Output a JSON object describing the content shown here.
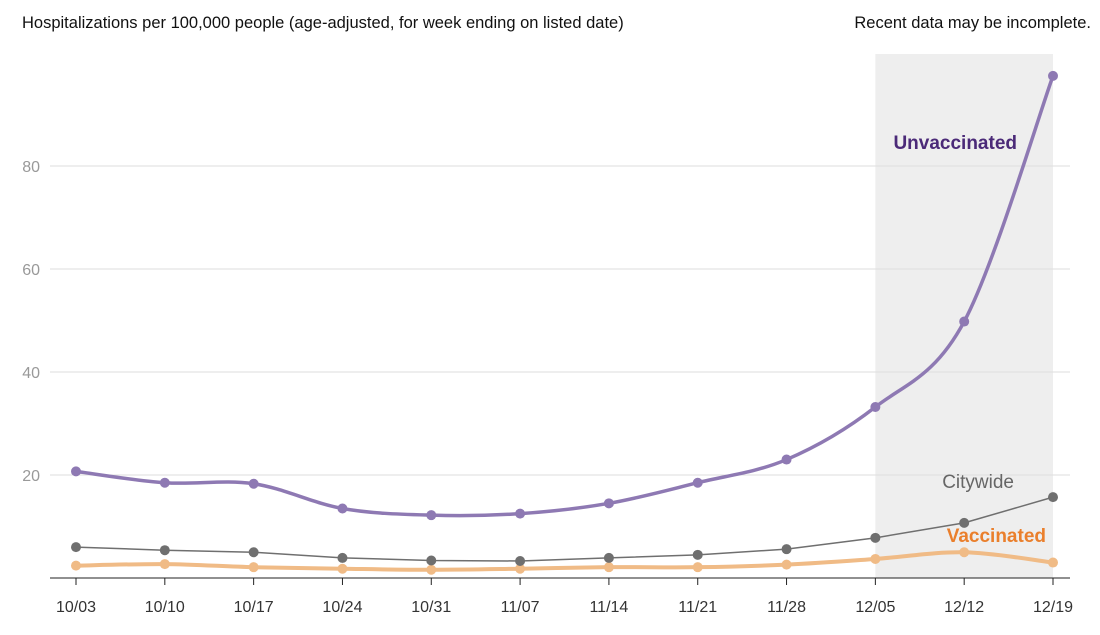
{
  "title": "Hospitalizations per 100,000 people (age-adjusted, for week ending on listed date)",
  "note": "Recent data may be incomplete.",
  "colors": {
    "unvaccinated": "#8e79b3",
    "unvaccinated_label": "#4b2a78",
    "citywide": "#6f6f6f",
    "citywide_label": "#666666",
    "vaccinated": "#f0bb86",
    "vaccinated_label": "#ea7f2c",
    "grid": "#dddddd",
    "shade": "#eeeeee"
  },
  "chart_data": {
    "type": "line",
    "x": [
      "10/03",
      "10/10",
      "10/17",
      "10/24",
      "10/31",
      "11/07",
      "11/14",
      "11/21",
      "11/28",
      "12/05",
      "12/12",
      "12/19"
    ],
    "series": [
      {
        "name": "Unvaccinated",
        "values": [
          20.7,
          18.5,
          18.3,
          13.5,
          12.2,
          12.5,
          14.5,
          18.5,
          23.0,
          33.2,
          49.8,
          97.5
        ]
      },
      {
        "name": "Citywide",
        "values": [
          6.0,
          5.4,
          5.0,
          3.9,
          3.4,
          3.3,
          3.9,
          4.5,
          5.6,
          7.8,
          10.7,
          15.7
        ]
      },
      {
        "name": "Vaccinated",
        "values": [
          2.4,
          2.7,
          2.1,
          1.8,
          1.6,
          1.8,
          2.1,
          2.1,
          2.6,
          3.7,
          5.0,
          3.0
        ]
      }
    ],
    "yticks": [
      20,
      40,
      60,
      80
    ],
    "ylim": [
      0,
      100
    ],
    "grid": true,
    "shaded_region": {
      "from": "12/05",
      "to": "12/19"
    },
    "xlabel": "",
    "ylabel": ""
  }
}
